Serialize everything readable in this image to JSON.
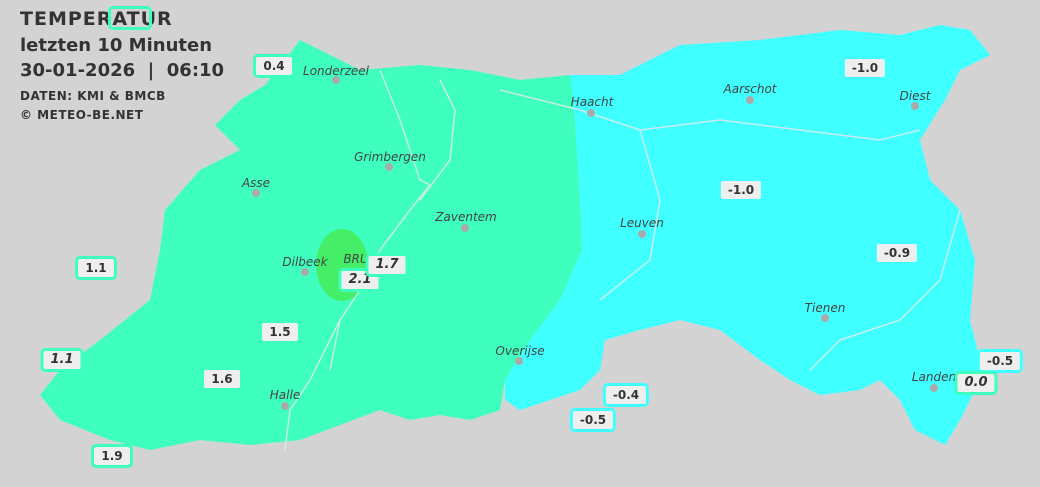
{
  "header": {
    "title": "TEMPERATUR",
    "subtitle": "letzten 10 Minuten",
    "datetime": "30-01-2026  |  06:10",
    "source": "DATEN: KMI & BMCB",
    "copyright": "© METEO-BE.NET"
  },
  "colors": {
    "zone_warm": "#3effbe",
    "zone_cold": "#40ffff",
    "brussels_zone": "#44ee66",
    "background": "#d3d3d3"
  },
  "places": [
    "Londerzeel",
    "Haacht",
    "Aarschot",
    "Diest",
    "Grimbergen",
    "Asse",
    "Zaventem",
    "Leuven",
    "Dilbeek",
    "BRU",
    "Tienen",
    "Overijse",
    "Halle",
    "Landen"
  ],
  "stations": [
    {
      "value": "",
      "zone": "warm",
      "italic": true
    },
    {
      "value": "0.4",
      "zone": "warm",
      "italic": false
    },
    {
      "value": "-1.0",
      "zone": "cold",
      "italic": false
    },
    {
      "value": "-1.0",
      "zone": "cold",
      "italic": false
    },
    {
      "value": "1.1",
      "zone": "warm",
      "italic": false
    },
    {
      "value": "-0.9",
      "zone": "cold",
      "italic": false
    },
    {
      "value": "1.5",
      "zone": "warm",
      "italic": false
    },
    {
      "value": "1.1",
      "zone": "warm",
      "italic": true
    },
    {
      "value": "1.6",
      "zone": "warm",
      "italic": false
    },
    {
      "value": "-0.4",
      "zone": "cold",
      "italic": false
    },
    {
      "value": "-0.5",
      "zone": "cold",
      "italic": false
    },
    {
      "value": "0.0",
      "zone": "warm",
      "italic": true
    },
    {
      "value": "-0.5",
      "zone": "cold",
      "italic": false
    },
    {
      "value": "1.9",
      "zone": "warm",
      "italic": false
    },
    {
      "value": "2.1",
      "zone": "warm",
      "italic": true
    },
    {
      "value": "1.7",
      "zone": "warm",
      "italic": true
    }
  ]
}
